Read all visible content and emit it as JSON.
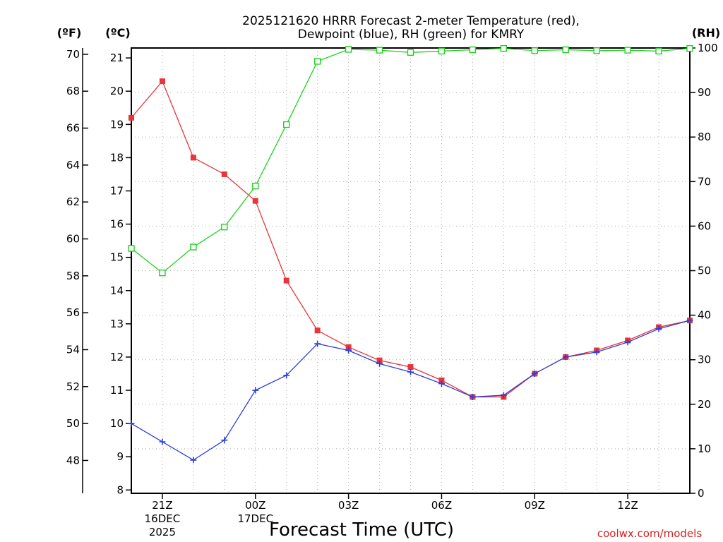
{
  "chart_data": {
    "type": "line",
    "title_lines": [
      "2025121620 HRRR Forecast 2-meter Temperature (red),",
      "Dewpoint (blue), RH (green) for KMRY"
    ],
    "units": {
      "fahrenheit": "(ºF)",
      "celsius": "(ºC)",
      "rh": "(RH)"
    },
    "xlabel": "Forecast Time (UTC)",
    "credit": "coolwx.com/models",
    "x_hours": [
      20,
      21,
      22,
      23,
      24,
      25,
      26,
      27,
      28,
      29,
      30,
      31,
      32,
      33,
      34,
      35,
      36,
      37,
      38
    ],
    "xlim": [
      20,
      38
    ],
    "x_ticks": [
      {
        "hour": 21,
        "lines": [
          "21Z",
          "16DEC",
          "2025"
        ]
      },
      {
        "hour": 24,
        "lines": [
          "00Z",
          "17DEC"
        ]
      },
      {
        "hour": 27,
        "lines": [
          "03Z"
        ]
      },
      {
        "hour": 30,
        "lines": [
          "06Z"
        ]
      },
      {
        "hour": 33,
        "lines": [
          "09Z"
        ]
      },
      {
        "hour": 36,
        "lines": [
          "12Z"
        ]
      }
    ],
    "celsius_axis": {
      "lim": [
        7.9,
        21.3
      ],
      "ticks": [
        8,
        9,
        10,
        11,
        12,
        13,
        14,
        15,
        16,
        17,
        18,
        19,
        20,
        21
      ]
    },
    "fahrenheit_axis": {
      "ticks": [
        48,
        50,
        52,
        54,
        56,
        58,
        60,
        62,
        64,
        66,
        68,
        70
      ]
    },
    "rh_axis": {
      "lim": [
        0,
        100
      ],
      "ticks": [
        0,
        10,
        20,
        30,
        40,
        50,
        60,
        70,
        80,
        90,
        100
      ]
    },
    "series": [
      {
        "name": "Temperature",
        "axis": "celsius",
        "color": "#e8353a",
        "marker": "filled-square",
        "values": [
          19.2,
          20.3,
          18.0,
          17.5,
          16.7,
          14.3,
          12.8,
          12.3,
          11.9,
          11.7,
          11.3,
          10.8,
          10.8,
          11.5,
          12.0,
          12.2,
          12.5,
          12.9,
          13.1
        ]
      },
      {
        "name": "Dewpoint",
        "axis": "celsius",
        "color": "#2d3fdc",
        "marker": "plus",
        "values": [
          10.0,
          9.45,
          8.9,
          9.5,
          11.0,
          11.45,
          12.4,
          12.2,
          11.8,
          11.55,
          11.2,
          10.8,
          10.85,
          11.5,
          12.0,
          12.15,
          12.45,
          12.85,
          13.1
        ]
      },
      {
        "name": "RH",
        "axis": "rh",
        "color": "#1fd21f",
        "marker": "open-square",
        "values": [
          55.0,
          49.5,
          55.3,
          59.8,
          69.0,
          82.8,
          97.0,
          99.7,
          99.5,
          99.0,
          99.3,
          99.6,
          99.9,
          99.4,
          99.6,
          99.4,
          99.5,
          99.3,
          99.9
        ]
      }
    ]
  }
}
